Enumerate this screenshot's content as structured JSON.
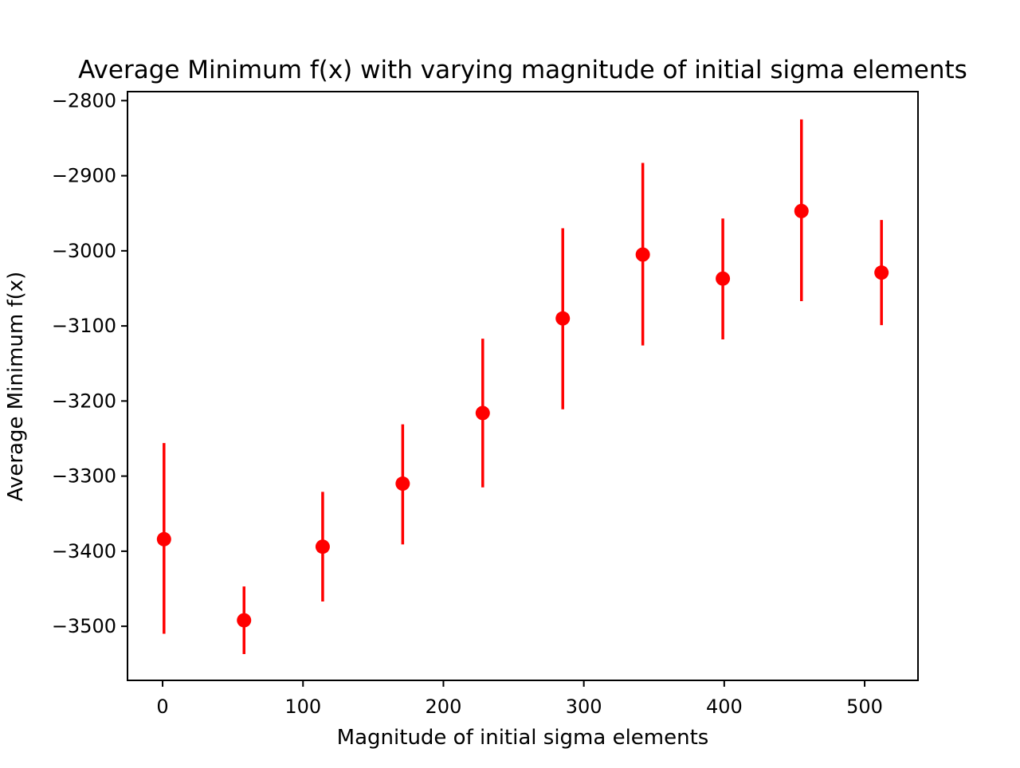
{
  "chart_data": {
    "type": "scatter",
    "title": "Average Minimum f(x) with varying magnitude of initial sigma elements",
    "xlabel": "Magnitude of initial sigma elements",
    "ylabel": "Average Minimum f(x)",
    "xlim": [
      -25,
      538
    ],
    "ylim": [
      -3572,
      -2788
    ],
    "xticks": [
      0,
      100,
      200,
      300,
      400,
      500
    ],
    "yticks": [
      -2800,
      -2900,
      -3000,
      -3100,
      -3200,
      -3300,
      -3400,
      -3500
    ],
    "xtick_labels": [
      "0",
      "100",
      "200",
      "300",
      "400",
      "500"
    ],
    "ytick_labels": [
      "−2800",
      "−2900",
      "−3000",
      "−3100",
      "−3200",
      "−3300",
      "−3400",
      "−3500"
    ],
    "grid": false,
    "legend": null,
    "color": "#ff0000",
    "points": [
      {
        "x": 1,
        "y": -3384,
        "yerr_low": -3510,
        "yerr_high": -3256
      },
      {
        "x": 58,
        "y": -3492,
        "yerr_low": -3537,
        "yerr_high": -3447
      },
      {
        "x": 114,
        "y": -3394,
        "yerr_low": -3467,
        "yerr_high": -3321
      },
      {
        "x": 171,
        "y": -3310,
        "yerr_low": -3391,
        "yerr_high": -3231
      },
      {
        "x": 228,
        "y": -3216,
        "yerr_low": -3315,
        "yerr_high": -3117
      },
      {
        "x": 285,
        "y": -3090,
        "yerr_low": -3211,
        "yerr_high": -2970
      },
      {
        "x": 342,
        "y": -3005,
        "yerr_low": -3126,
        "yerr_high": -2883
      },
      {
        "x": 399,
        "y": -3037,
        "yerr_low": -3118,
        "yerr_high": -2957
      },
      {
        "x": 455,
        "y": -2947,
        "yerr_low": -3067,
        "yerr_high": -2825
      },
      {
        "x": 512,
        "y": -3029,
        "yerr_low": -3099,
        "yerr_high": -2959
      }
    ]
  }
}
